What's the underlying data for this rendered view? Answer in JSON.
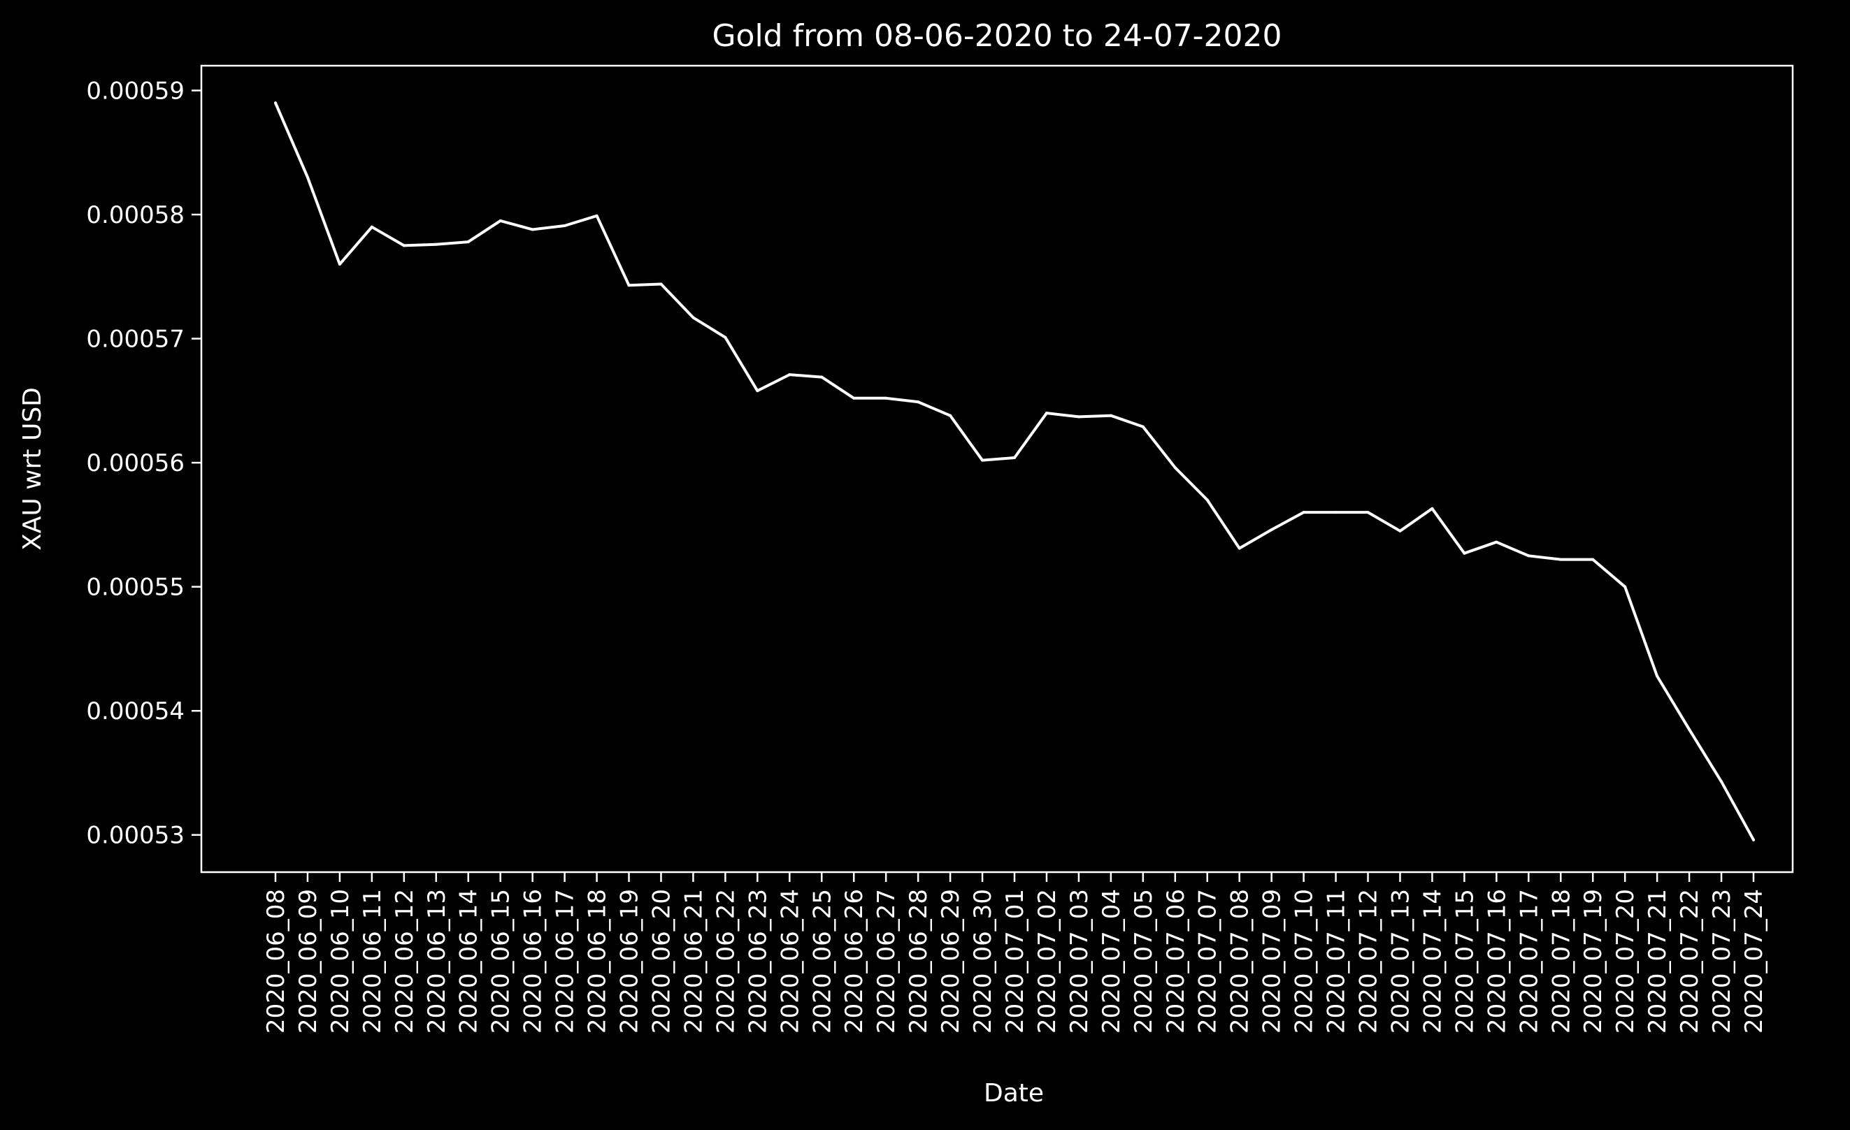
{
  "chart_data": {
    "type": "line",
    "title": "Gold from 08-06-2020 to 24-07-2020",
    "xlabel": "Date",
    "ylabel": "XAU wrt USD",
    "grid": false,
    "legend": "none",
    "colors": {
      "background": "#000000",
      "line": "#ffffff",
      "axes": "#ffffff",
      "text": "#ffffff"
    },
    "ylim": [
      0.000527,
      0.000592
    ],
    "yticks": [
      "0.00053",
      "0.00054",
      "0.00055",
      "0.00056",
      "0.00057",
      "0.00058",
      "0.00059"
    ],
    "x": [
      "2020_06_08",
      "2020_06_09",
      "2020_06_10",
      "2020_06_11",
      "2020_06_12",
      "2020_06_13",
      "2020_06_14",
      "2020_06_15",
      "2020_06_16",
      "2020_06_17",
      "2020_06_18",
      "2020_06_19",
      "2020_06_20",
      "2020_06_21",
      "2020_06_22",
      "2020_06_23",
      "2020_06_24",
      "2020_06_25",
      "2020_06_26",
      "2020_06_27",
      "2020_06_28",
      "2020_06_29",
      "2020_06_30",
      "2020_07_01",
      "2020_07_02",
      "2020_07_03",
      "2020_07_04",
      "2020_07_05",
      "2020_07_06",
      "2020_07_07",
      "2020_07_08",
      "2020_07_09",
      "2020_07_10",
      "2020_07_11",
      "2020_07_12",
      "2020_07_13",
      "2020_07_14",
      "2020_07_15",
      "2020_07_16",
      "2020_07_17",
      "2020_07_18",
      "2020_07_19",
      "2020_07_20",
      "2020_07_21",
      "2020_07_22",
      "2020_07_23",
      "2020_07_24"
    ],
    "series": [
      {
        "values": [
          0.000589,
          0.000583,
          0.000576,
          0.000579,
          0.0005775,
          0.0005776,
          0.0005778,
          0.0005795,
          0.0005788,
          0.0005791,
          0.0005799,
          0.0005743,
          0.0005744,
          0.0005717,
          0.0005701,
          0.0005658,
          0.0005671,
          0.0005669,
          0.0005652,
          0.0005652,
          0.0005649,
          0.0005638,
          0.0005602,
          0.0005604,
          0.000564,
          0.0005637,
          0.0005638,
          0.0005629,
          0.0005596,
          0.000557,
          0.0005531,
          0.0005546,
          0.000556,
          0.000556,
          0.000556,
          0.0005545,
          0.0005563,
          0.0005527,
          0.0005536,
          0.0005525,
          0.0005522,
          0.0005522,
          0.00055,
          0.0005428,
          0.0005385,
          0.0005343,
          0.0005296
        ]
      }
    ]
  }
}
